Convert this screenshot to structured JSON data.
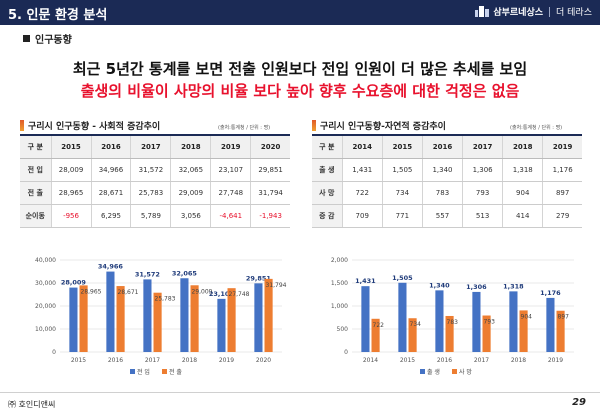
{
  "header": {
    "title": "5. 인문 환경 분석",
    "brand": "삼부르네상스",
    "brand_sub": "더 테라스"
  },
  "section": {
    "label": "인구동향"
  },
  "headline": {
    "line1": "최근 5년간 통계를 보면 전출 인원보다 전입 인원이 더 많은 추세를 보임",
    "line2": "출생의 비율이 사망의 비율 보다 높아 향후 수요층에 대한 걱정은 없음"
  },
  "left_table": {
    "title": "구리시 인구동향 - 사회적 증감추이",
    "source": "(출처:통계청 / 단위 : 명)",
    "headers": [
      "구 분",
      "2015",
      "2016",
      "2017",
      "2018",
      "2019",
      "2020"
    ],
    "rows": [
      {
        "label": "전 입",
        "values": [
          "28,009",
          "34,966",
          "31,572",
          "32,065",
          "23,107",
          "29,851"
        ]
      },
      {
        "label": "전 출",
        "values": [
          "28,965",
          "28,671",
          "25,783",
          "29,009",
          "27,748",
          "31,794"
        ]
      },
      {
        "label": "순이동",
        "values": [
          "-956",
          "6,295",
          "5,789",
          "3,056",
          "-4,641",
          "-1,943"
        ]
      }
    ]
  },
  "right_table": {
    "title": "구리시 인구동향-자연적 증감추이",
    "source": "(출처:통계청 / 단위 : 명)",
    "headers": [
      "구 분",
      "2014",
      "2015",
      "2016",
      "2017",
      "2018",
      "2019"
    ],
    "rows": [
      {
        "label": "출 생",
        "values": [
          "1,431",
          "1,505",
          "1,340",
          "1,306",
          "1,318",
          "1,176"
        ]
      },
      {
        "label": "사 망",
        "values": [
          "722",
          "734",
          "783",
          "793",
          "904",
          "897"
        ]
      },
      {
        "label": "증 감",
        "values": [
          "709",
          "771",
          "557",
          "513",
          "414",
          "279"
        ]
      }
    ]
  },
  "chart_data": [
    {
      "type": "bar",
      "categories": [
        "2015",
        "2016",
        "2017",
        "2018",
        "2019",
        "2020"
      ],
      "series": [
        {
          "name": "전 입",
          "color": "#4472c4",
          "values": [
            28009,
            34966,
            31572,
            32065,
            23107,
            29851
          ],
          "labels": [
            "28,009",
            "34,966",
            "31,572",
            "32,065",
            "23,107",
            "29,851"
          ]
        },
        {
          "name": "전 출",
          "color": "#ed7d31",
          "values": [
            28965,
            28671,
            25783,
            29009,
            27748,
            31794
          ],
          "labels": [
            "28,965",
            "28,671",
            "25,783",
            "29,009",
            "27,748",
            "31,794"
          ]
        }
      ],
      "yticks": [
        "0",
        "10,000",
        "20,000",
        "30,000",
        "40,000"
      ],
      "ylim": [
        0,
        40000
      ],
      "legend": "bottom"
    },
    {
      "type": "bar",
      "categories": [
        "2014",
        "2015",
        "2016",
        "2017",
        "2018",
        "2019"
      ],
      "series": [
        {
          "name": "출 생",
          "color": "#4472c4",
          "values": [
            1431,
            1505,
            1340,
            1306,
            1318,
            1176
          ],
          "labels": [
            "1,431",
            "1,505",
            "1,340",
            "1,306",
            "1,318",
            "1,176"
          ]
        },
        {
          "name": "사 망",
          "color": "#ed7d31",
          "values": [
            722,
            734,
            783,
            793,
            904,
            897
          ],
          "labels": [
            "722",
            "734",
            "783",
            "793",
            "904",
            "897"
          ]
        }
      ],
      "yticks": [
        "0",
        "500",
        "1,000",
        "1,500",
        "2,000"
      ],
      "ylim": [
        0,
        2000
      ],
      "legend": "bottom"
    }
  ],
  "footer": {
    "company": "㈜ 호인디앤씨",
    "page": "29"
  }
}
